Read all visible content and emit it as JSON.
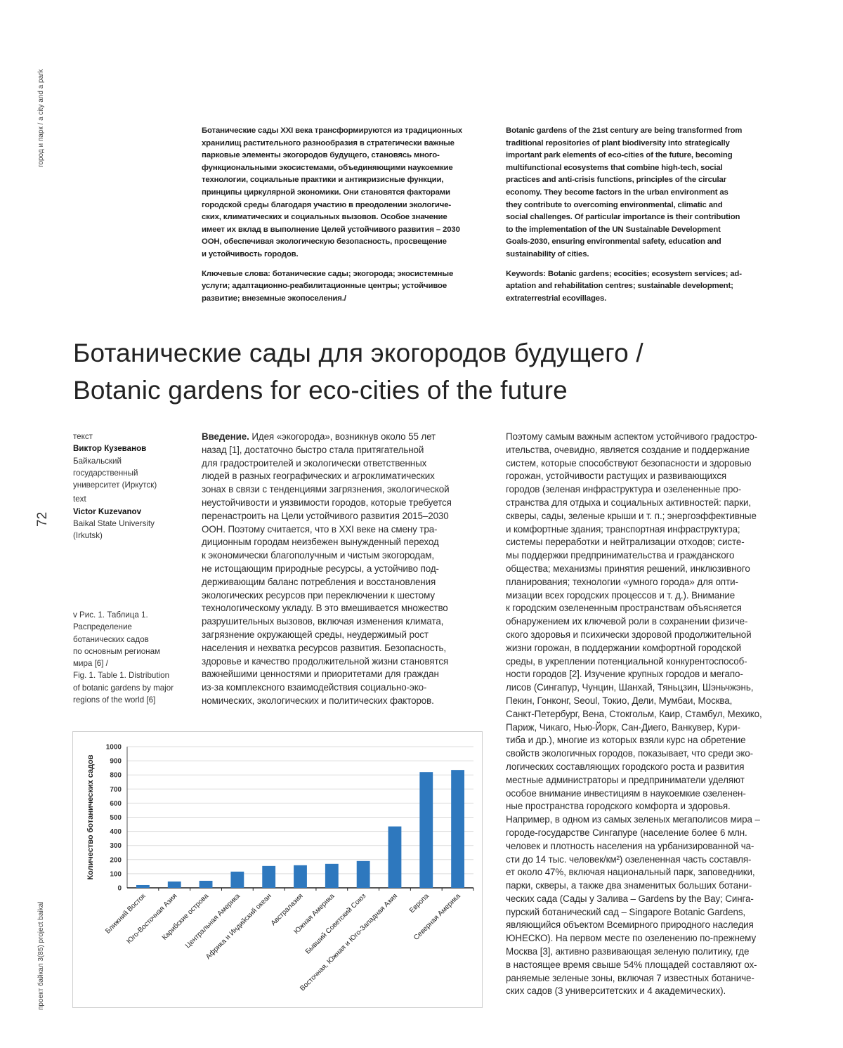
{
  "header": {
    "section": "город и парк / a city and a park",
    "footer": "проект байкал 3(85) project baikal",
    "page_number": "72"
  },
  "abstract_ru": {
    "lines": [
      "Ботанические сады XXI века трансформируются из традиционных",
      "хранилищ растительного разнообразия в стратегически важные",
      "парковые элементы экогородов будущего, становясь много-",
      "функциональными экосистемами, объединяющими наукоемкие",
      "технологии, социальные практики и антикризисные функции,",
      "принципы циркулярной экономики. Они становятся факторами",
      "городской среды благодаря участию в преодолении экологиче-",
      "ских, климатических и социальных вызовов. Особое значение",
      "имеет их вклад в выполнение Целей устойчивого развития – 2030",
      "ООН, обеспечивая экологическую безопасность, просвещение",
      "и устойчивость городов."
    ],
    "keywords": [
      "Ключевые слова: ботанические сады; экогорода; экосистемные",
      "услуги; адаптационно-реабилитационные центры; устойчивое",
      "развитие; внеземные экопоселения./"
    ]
  },
  "abstract_en": {
    "lines": [
      "Botanic gardens of the 21st century are being transformed from",
      "traditional repositories of plant biodiversity into strategically",
      "important park elements of eco-cities of the future, becoming",
      "multifunctional ecosystems that combine high-tech, social",
      "practices and anti-crisis functions, principles of the circular",
      "economy. They become factors in the urban environment as",
      "they contribute to overcoming environmental, climatic and",
      "social challenges. Of particular importance is their contribution",
      "to the implementation of the UN Sustainable Development",
      "Goals-2030, ensuring environmental safety, education and",
      "sustainability of cities."
    ],
    "keywords": [
      "Keywords: Botanic gardens; ecocities; ecosystem services; ad-",
      "aptation and rehabilitation centres; sustainable development;",
      "extraterrestrial ecovillages."
    ]
  },
  "title": {
    "line1": "Ботанические сады для экогородов будущего /",
    "line2": "Botanic gardens for eco-cities of the future"
  },
  "author": {
    "label_ru": "текст",
    "name_ru": "Виктор Кузеванов",
    "affil_ru": [
      "Байкальский",
      "государственный",
      "университет (Иркутск)"
    ],
    "label_en": "text",
    "name_en": "Victor Kuzevanov",
    "affil_en": [
      "Baikal State University",
      "(Irkutsk)"
    ]
  },
  "caption": {
    "lines": [
      "v  Рис. 1. Таблица 1.",
      "Распределение",
      "ботанических садов",
      "по основным регионам",
      "мира [6] /",
      "Fig. 1. Table 1. Distribution",
      "of botanic gardens by major",
      "regions of the world [6]"
    ]
  },
  "body_col1": {
    "lead": "Введение.",
    "first_line": " Идея «экогорода», возникнув около 55 лет",
    "lines": [
      "назад [1], достаточно быстро стала притягательной",
      "для градостроителей и экологически ответственных",
      "людей в разных географических и агроклиматических",
      "зонах в связи с тенденциями загрязнения, экологической",
      "неустойчивости и уязвимости городов, которые требуется",
      "перенастроить на Цели устойчивого развития 2015–2030",
      "ООН. Поэтому считается, что в XXI веке на смену тра-",
      "диционным городам неизбежен вынужденный переход",
      "к экономически благополучным и чистым экогородам,",
      "не истощающим природные ресурсы, а устойчиво под-",
      "держивающим баланс потребления и восстановления",
      "экологических ресурсов при переключении к шестому",
      "технологическому укладу. В это вмешивается множество",
      "разрушительных вызовов, включая изменения климата,",
      "загрязнение окружающей среды, неудержимый рост",
      "населения и нехватка ресурсов развития. Безопасность,",
      "здоровье и качество продолжительной жизни становятся",
      "важнейшими ценностями и приоритетами для граждан",
      "из-за комплексного взаимодействия социально-эко-",
      "номических, экологических и политических факторов."
    ]
  },
  "body_col2": {
    "lines": [
      "Поэтому самым важным аспектом устойчивого градостро-",
      "ительства, очевидно, является создание и поддержание",
      "систем, которые способствуют безопасности и здоровью",
      "горожан, устойчивости растущих и развивающихся",
      "городов (зеленая инфраструктура и озелененные про-",
      "странства для отдыха и социальных активностей: парки,",
      "скверы, сады, зеленые крыши и т. п.; энергоэффективные",
      "и комфортные здания; транспортная инфраструктура;",
      "системы переработки и нейтрализации отходов; систе-",
      "мы поддержки предпринимательства и гражданского",
      "общества; механизмы принятия решений, инклюзивного",
      "планирования; технологии «умного города» для опти-",
      "мизации всех городских процессов и т. д.). Внимание",
      "к городским озелененным пространствам объясняется",
      "обнаружением их ключевой роли в сохранении физиче-",
      "ского здоровья и психически здоровой продолжительной",
      "жизни горожан, в поддержании комфортной городской",
      "среды, в укреплении потенциальной конкурентоспособ-",
      "ности городов [2]. Изучение крупных городов и мегапо-",
      "лисов (Сингапур, Чунцин, Шанхай, Тяньцзин, Шэньчжэнь,",
      "Пекин, Гонконг, Seoul, Токио, Дели, Мумбаи, Москва,",
      "Санкт-Петербург, Вена, Стокгольм, Каир, Стамбул, Мехико,",
      "Париж, Чикаго, Нью-Йорк, Сан-Диего, Ванкувер, Кури-",
      "тиба и др.), многие из которых взяли курс на обретение",
      "свойств экологичных городов, показывает, что среди эко-",
      "логических составляющих городского роста и развития",
      "местные администраторы и предприниматели уделяют",
      "особое внимание инвестициям в наукоемкие озеленен-",
      "ные пространства городского комфорта и здоровья.",
      "Например, в одном из самых зеленых мегаполисов мира –",
      "городе-государстве Сингапуре (население более 6 млн.",
      "человек и плотность населения на урбанизированной ча-",
      "сти до 14 тыс. человек/км²) озелененная часть составля-",
      "ет около 47%, включая национальный парк, заповедники,",
      "парки, скверы, а также два знаменитых больших ботани-",
      "ческих сада (Сады у Залива – Gardens by the Bay; Синга-",
      "пурский ботанический сад – Singapore Botanic Gardens,",
      "являющийся объектом Всемирного природного наследия",
      "ЮНЕСКО). На первом месте по озеленению по-прежнему",
      "Москва [3], активно развивающая зеленую политику, где",
      "в настоящее время свыше 54% площадей составляют ох-",
      "раняемые зеленые зоны, включая 7 известных ботаниче-",
      "ских садов (3 университетских и 4 академических)."
    ]
  },
  "chart_data": {
    "type": "bar",
    "title": "",
    "xlabel": "",
    "ylabel": "Количество ботанических садов",
    "ylim": [
      0,
      1000
    ],
    "yticks": [
      "0",
      "100",
      "200",
      "300",
      "400",
      "500",
      "600",
      "700",
      "800",
      "900",
      "1000"
    ],
    "grid": true,
    "bar_color": "#2e78be",
    "categories": [
      "Ближний Восток",
      "Юго-Восточная Азия",
      "Карибские острова",
      "Центральная Америка",
      "Африка и Индийский океан",
      "Австралазия",
      "Южная Америка",
      "Бывший Советский Союз",
      "Восточная, Южная и Юго-Западная Азия",
      "Европа",
      "Северная Америка"
    ],
    "values": [
      20,
      45,
      50,
      115,
      155,
      160,
      170,
      190,
      435,
      820,
      835
    ]
  }
}
